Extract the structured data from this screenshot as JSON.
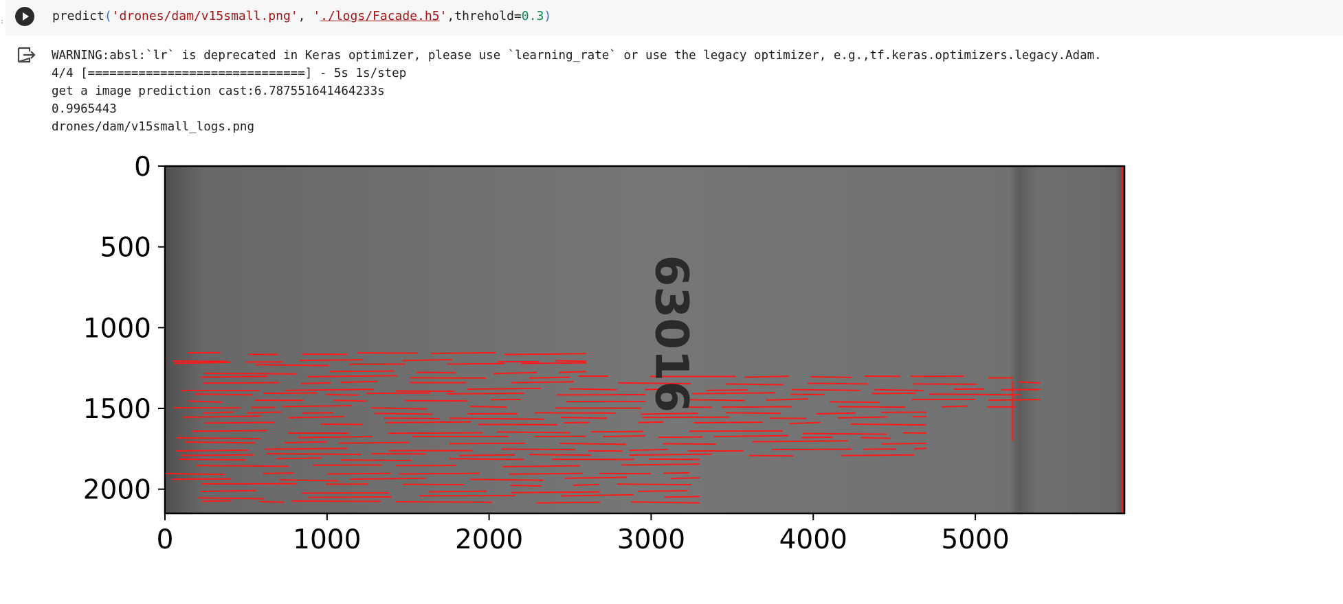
{
  "code_cell": {
    "fn": "predict",
    "arg1": "'drones/dam/v15small.png'",
    "arg2_q1": "'",
    "arg2_path": "./logs/Facade.h5",
    "arg2_q2": "'",
    "kw": "threhold",
    "val": "0.3"
  },
  "output": {
    "lines": [
      "WARNING:absl:`lr` is deprecated in Keras optimizer, please use `learning_rate` or use the legacy optimizer, e.g.,tf.keras.optimizers.legacy.Adam.",
      "4/4 [==============================] - 5s 1s/step",
      "get a image prediction cast:6.787551641464233s",
      "0.9965443",
      "drones/dam/v15small_logs.png"
    ]
  },
  "icons": {
    "run": "play-circle-icon",
    "output": "output-arrow-icon"
  },
  "chart_data": {
    "type": "image",
    "xlim": [
      0,
      5920
    ],
    "ylim": [
      2150,
      0
    ],
    "xticks": [
      "0",
      "1000",
      "2000",
      "3000",
      "4000",
      "5000"
    ],
    "yticks": [
      "0",
      "500",
      "1000",
      "1500",
      "2000"
    ],
    "image_text": "63016",
    "colors": {
      "cracks": "#ff1a1a",
      "background": "#6e6e6e"
    }
  }
}
